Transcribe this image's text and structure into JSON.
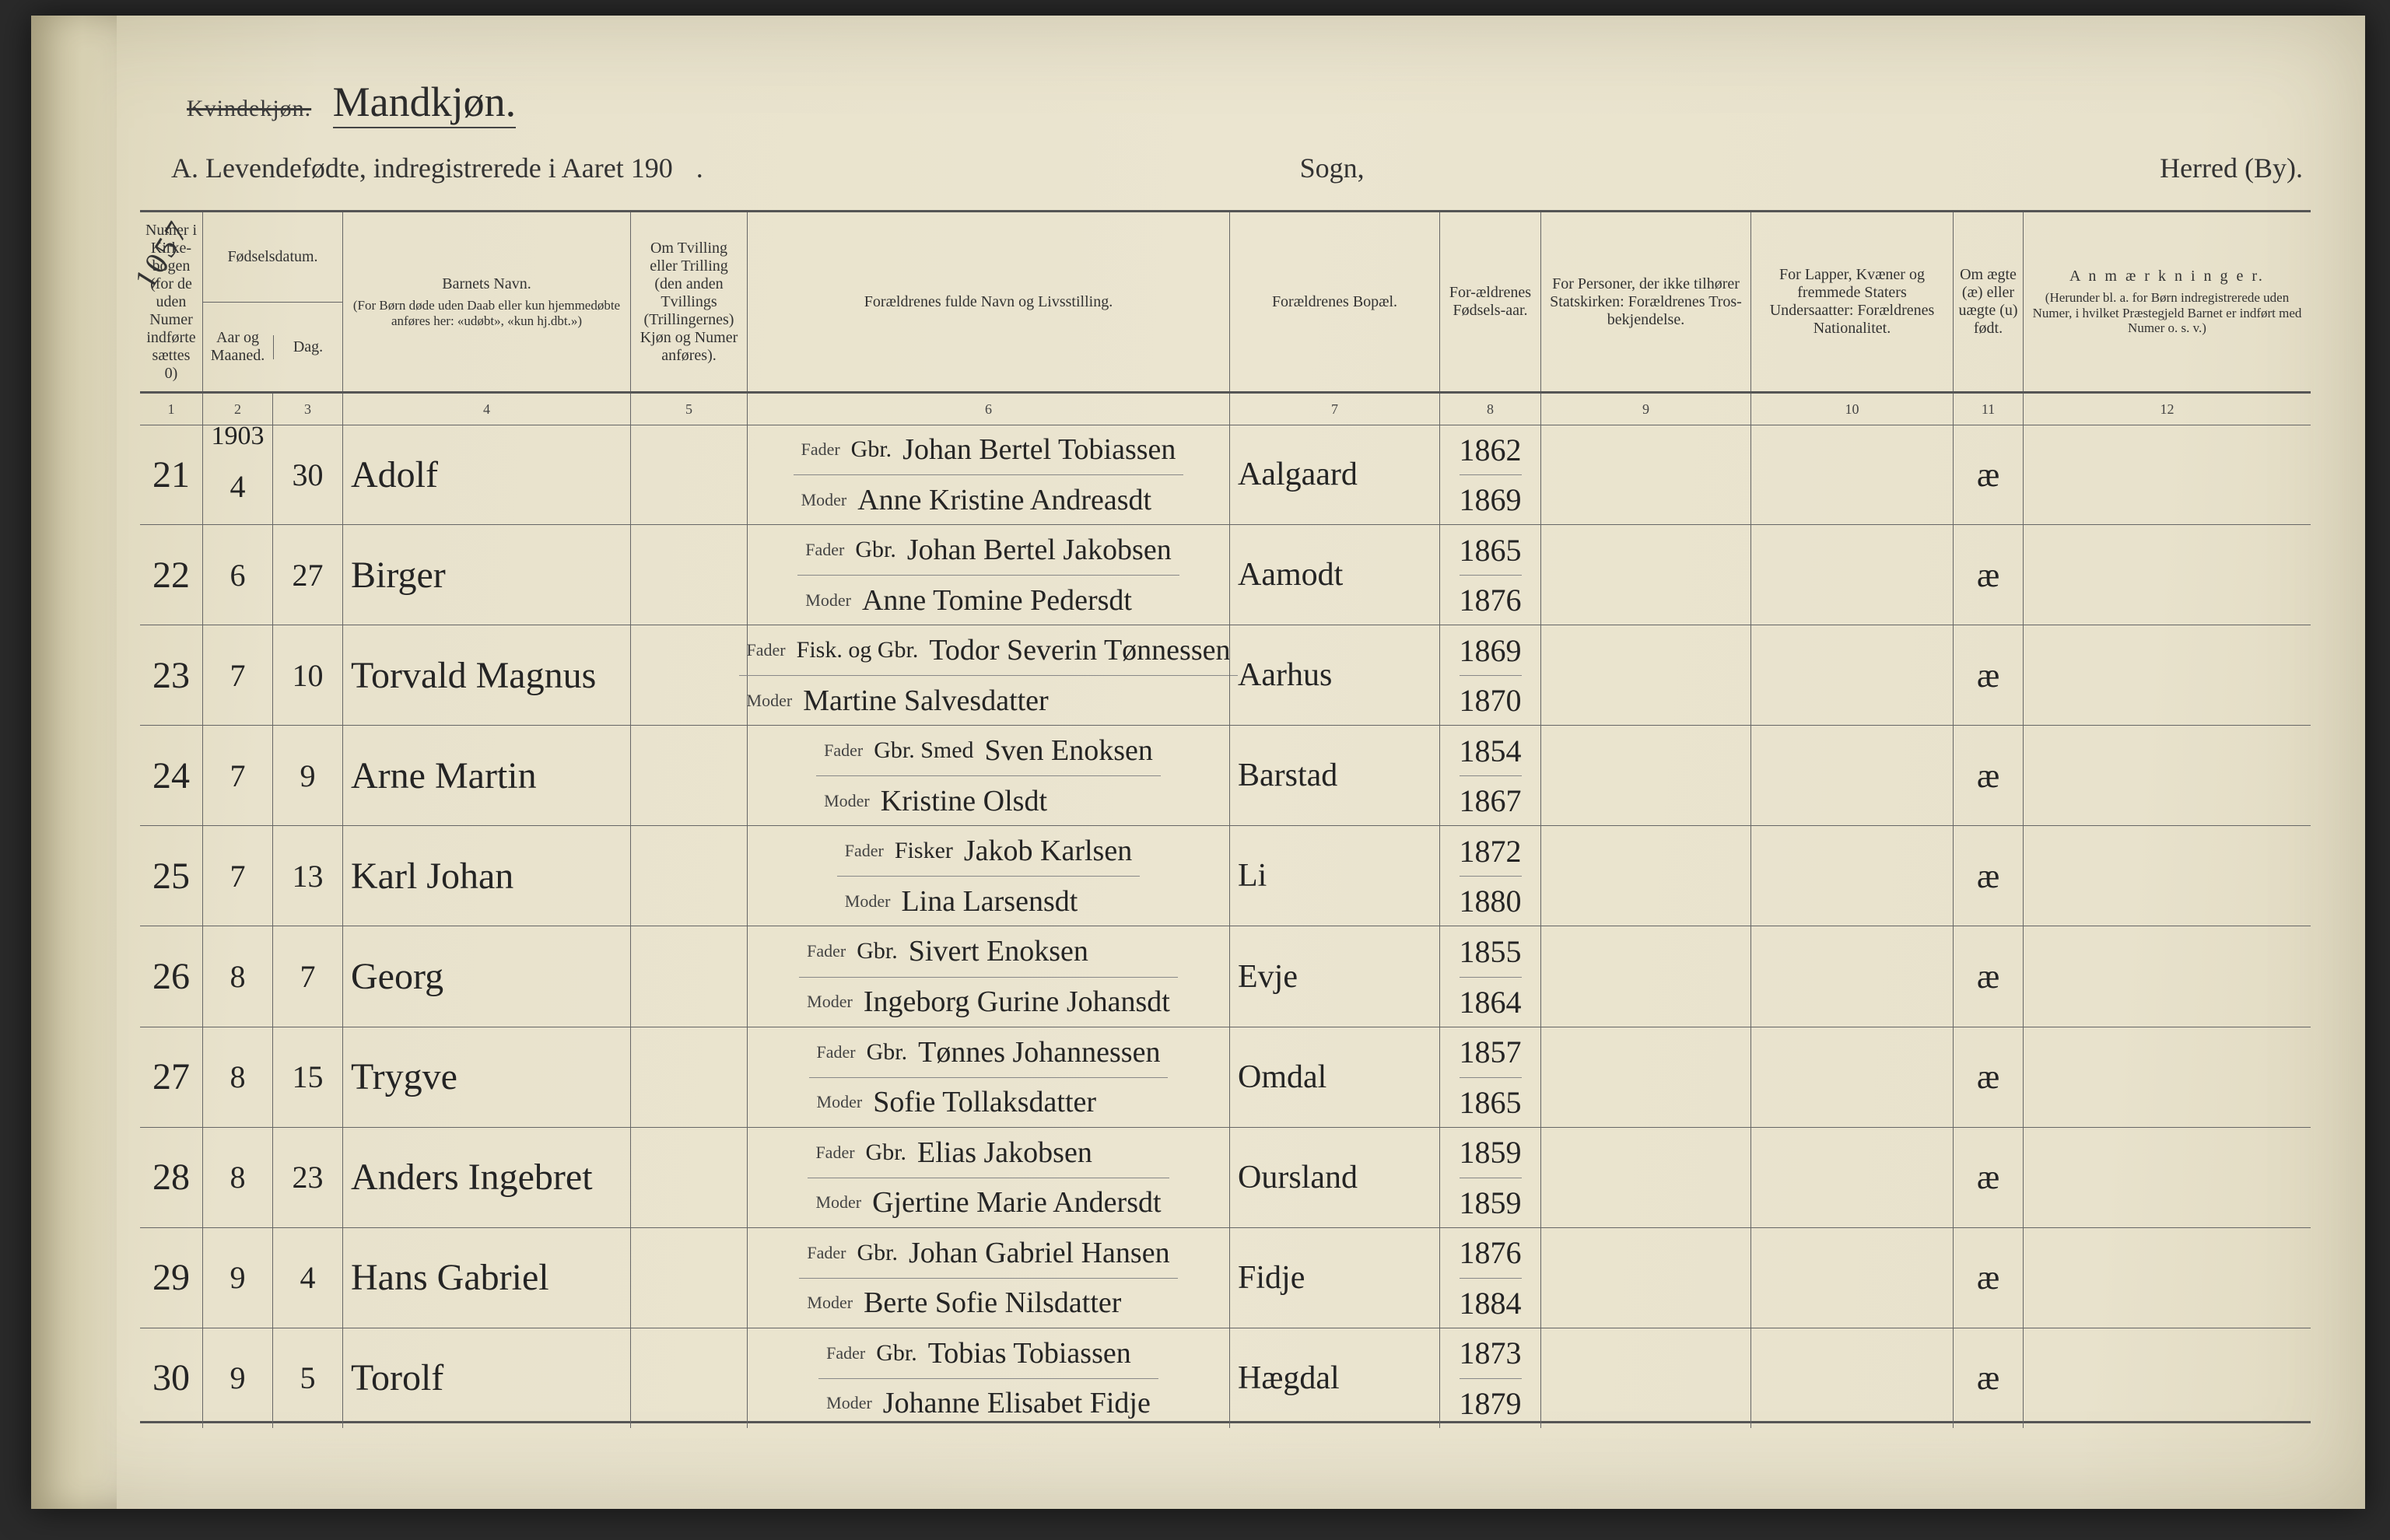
{
  "header": {
    "gender_printed": "Kvindekjøn.",
    "gender_handwritten": "Mandkjøn.",
    "title_prefix": "A.  Levendefødte, indregistrerede i Aaret 190",
    "title_dot": ".",
    "sogn_label": "Sogn,",
    "herred_label": "Herred (By)."
  },
  "columns": {
    "c1": "Numer i Kirke-bogen (for de uden Numer indførte sættes 0)",
    "c2_top": "Fødselsdatum.",
    "c2a": "Aar og Maaned.",
    "c2b": "Dag.",
    "c4a": "Barnets Navn.",
    "c4b": "(For Børn døde uden Daab eller kun hjemmedøbte anføres her: «udøbt», «kun hj.dbt.»)",
    "c5": "Om Tvilling eller Trilling (den anden Tvillings (Trillingernes) Kjøn og Numer anføres).",
    "c6": "Forældrenes fulde Navn og Livsstilling.",
    "c7": "Forældrenes Bopæl.",
    "c8": "For-ældrenes Fødsels-aar.",
    "c9": "For Personer, der ikke tilhører Statskirken: Forældrenes Tros-bekjendelse.",
    "c10": "For Lapper, Kvæner og fremmede Staters Undersaatter: Forældrenes Nationalitet.",
    "c11": "Om ægte (æ) eller uægte (u) født.",
    "c12a": "A n m æ r k n i n g e r.",
    "c12b": "(Herunder bl. a. for Børn indregistrerede uden Numer, i hvilket Præstegjeld Barnet er indført med Numer o. s. v.)",
    "nums": [
      "1",
      "2",
      "3",
      "4",
      "5",
      "6",
      "7",
      "8",
      "9",
      "10",
      "11",
      "12"
    ]
  },
  "side_note": "1057",
  "year_mark": "1903",
  "labels": {
    "fader": "Fader",
    "moder": "Moder"
  },
  "rows": [
    {
      "no": "21",
      "month": "4",
      "day": "30",
      "name": "Adolf",
      "father_occ": "Gbr.",
      "father": "Johan Bertel Tobiassen",
      "mother": "Anne Kristine Andreasdt",
      "place": "Aalgaard",
      "fy": "1862",
      "my": "1869",
      "leg": "æ"
    },
    {
      "no": "22",
      "month": "6",
      "day": "27",
      "name": "Birger",
      "father_occ": "Gbr.",
      "father": "Johan Bertel Jakobsen",
      "mother": "Anne Tomine Pedersdt",
      "place": "Aamodt",
      "fy": "1865",
      "my": "1876",
      "leg": "æ"
    },
    {
      "no": "23",
      "month": "7",
      "day": "10",
      "name": "Torvald Magnus",
      "father_occ": "Fisk. og Gbr.",
      "father": "Todor Severin Tønnessen",
      "mother": "Martine Salvesdatter",
      "place": "Aarhus",
      "fy": "1869",
      "my": "1870",
      "leg": "æ"
    },
    {
      "no": "24",
      "month": "7",
      "day": "9",
      "name": "Arne Martin",
      "father_occ": "Gbr. Smed",
      "father": "Sven Enoksen",
      "mother": "Kristine Olsdt",
      "place": "Barstad",
      "fy": "1854",
      "my": "1867",
      "leg": "æ"
    },
    {
      "no": "25",
      "month": "7",
      "day": "13",
      "name": "Karl Johan",
      "father_occ": "Fisker",
      "father": "Jakob Karlsen",
      "mother": "Lina Larsensdt",
      "place": "Li",
      "fy": "1872",
      "my": "1880",
      "leg": "æ"
    },
    {
      "no": "26",
      "month": "8",
      "day": "7",
      "name": "Georg",
      "father_occ": "Gbr.",
      "father": "Sivert Enoksen",
      "mother": "Ingeborg Gurine Johansdt",
      "place": "Evje",
      "fy": "1855",
      "my": "1864",
      "leg": "æ"
    },
    {
      "no": "27",
      "month": "8",
      "day": "15",
      "name": "Trygve",
      "father_occ": "Gbr.",
      "father": "Tønnes Johannessen",
      "mother": "Sofie Tollaksdatter",
      "place": "Omdal",
      "fy": "1857",
      "my": "1865",
      "leg": "æ"
    },
    {
      "no": "28",
      "month": "8",
      "day": "23",
      "name": "Anders Ingebret",
      "father_occ": "Gbr.",
      "father": "Elias Jakobsen",
      "mother": "Gjertine Marie Andersdt",
      "place": "Oursland",
      "fy": "1859",
      "my": "1859",
      "leg": "æ"
    },
    {
      "no": "29",
      "month": "9",
      "day": "4",
      "name": "Hans Gabriel",
      "father_occ": "Gbr.",
      "father": "Johan Gabriel Hansen",
      "mother": "Berte Sofie Nilsdatter",
      "place": "Fidje",
      "fy": "1876",
      "my": "1884",
      "leg": "æ"
    },
    {
      "no": "30",
      "month": "9",
      "day": "5",
      "name": "Torolf",
      "father_occ": "Gbr.",
      "father": "Tobias Tobiassen",
      "mother": "Johanne Elisabet Fidje",
      "place": "Hægdal",
      "fy": "1873",
      "my": "1879",
      "leg": "æ"
    }
  ]
}
